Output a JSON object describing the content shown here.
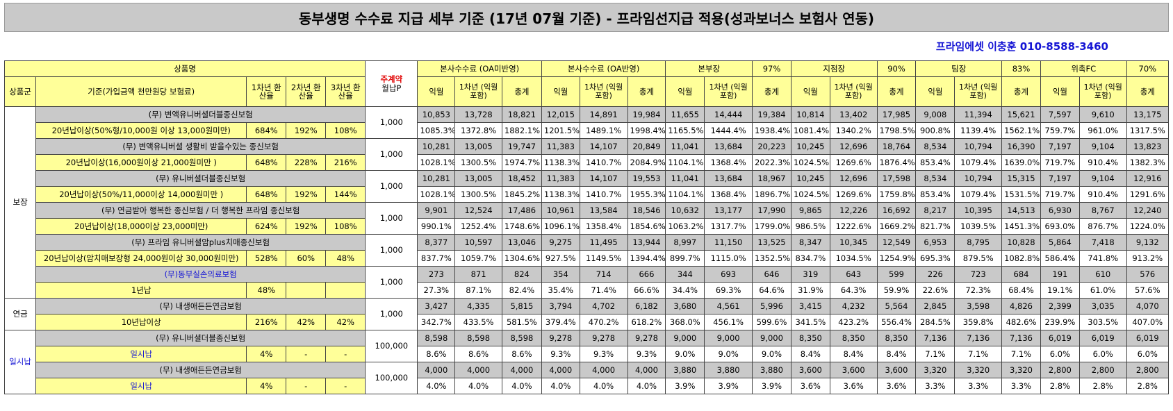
{
  "title": "동부생명 수수료 지급 세부 기준 (17년 07월 기준) - 프라임선지급 적용(성과보너스 보험사 연동)",
  "contact": "프라임에셋 이충훈 010-8588-3460",
  "header": {
    "product_name": "상품명",
    "group": "상품군",
    "basis": "기준(가입금액 천만원당 보험료)",
    "rate1": "1차년 환산율",
    "rate2": "2차년 환산율",
    "rate3": "3차년 환산율",
    "main_contract": "주계약",
    "monthly_premium": "월납P",
    "sections": [
      {
        "label": "본사수수료 (OA미반영)",
        "pct": ""
      },
      {
        "label": "본사수수료 (OA반영)",
        "pct": ""
      },
      {
        "label": "본부장",
        "pct": "97%"
      },
      {
        "label": "지점장",
        "pct": "90%"
      },
      {
        "label": "팀장",
        "pct": "83%"
      },
      {
        "label": "위촉FC",
        "pct": "70%"
      }
    ],
    "sub": [
      "익월",
      "1차년 (익월포함)",
      "총계"
    ]
  },
  "groups": [
    {
      "name": "보장",
      "start": 0,
      "count": 6
    },
    {
      "name": "연금",
      "start": 6,
      "count": 1
    },
    {
      "name": "일시납",
      "start": 7,
      "count": 2
    }
  ],
  "products": [
    {
      "name": "(무) 변액유니버셜더블종신보험",
      "name_blue": false,
      "term": "20년납이상(50%형/10,000원 이상 13,000원미만)",
      "term_blue": false,
      "r1": "684%",
      "r2": "192%",
      "r3": "108%",
      "premium": "1,000",
      "nums": [
        "10,853",
        "13,728",
        "18,821",
        "12,015",
        "14,891",
        "19,984",
        "11,655",
        "14,444",
        "19,384",
        "10,814",
        "13,402",
        "17,985",
        "9,008",
        "11,394",
        "15,621",
        "7,597",
        "9,610",
        "13,175"
      ],
      "pcts": [
        "1085.3%",
        "1372.8%",
        "1882.1%",
        "1201.5%",
        "1489.1%",
        "1998.4%",
        "1165.5%",
        "1444.4%",
        "1938.4%",
        "1081.4%",
        "1340.2%",
        "1798.5%",
        "900.8%",
        "1139.4%",
        "1562.1%",
        "759.7%",
        "961.0%",
        "1317.5%"
      ]
    },
    {
      "name": "(무) 변액유니버셜 생활비 받을수있는 종신보험",
      "name_blue": false,
      "term": "20년납이상(16,000원이상 21,000원미만 )",
      "term_blue": false,
      "r1": "648%",
      "r2": "228%",
      "r3": "216%",
      "premium": "1,000",
      "nums": [
        "10,281",
        "13,005",
        "19,747",
        "11,383",
        "14,107",
        "20,849",
        "11,041",
        "13,684",
        "20,223",
        "10,245",
        "12,696",
        "18,764",
        "8,534",
        "10,794",
        "16,390",
        "7,197",
        "9,104",
        "13,823"
      ],
      "pcts": [
        "1028.1%",
        "1300.5%",
        "1974.7%",
        "1138.3%",
        "1410.7%",
        "2084.9%",
        "1104.1%",
        "1368.4%",
        "2022.3%",
        "1024.5%",
        "1269.6%",
        "1876.4%",
        "853.4%",
        "1079.4%",
        "1639.0%",
        "719.7%",
        "910.4%",
        "1382.3%"
      ]
    },
    {
      "name": "(무) 유니버셜더블종신보험",
      "name_blue": false,
      "term": "20년납이상(50%/11,000이상 14,000원미만 )",
      "term_blue": false,
      "r1": "648%",
      "r2": "192%",
      "r3": "144%",
      "premium": "1,000",
      "nums": [
        "10,281",
        "13,005",
        "18,452",
        "11,383",
        "14,107",
        "19,553",
        "11,041",
        "13,684",
        "18,967",
        "10,245",
        "12,696",
        "17,598",
        "8,534",
        "10,794",
        "15,315",
        "7,197",
        "9,104",
        "12,916"
      ],
      "pcts": [
        "1028.1%",
        "1300.5%",
        "1845.2%",
        "1138.3%",
        "1410.7%",
        "1955.3%",
        "1104.1%",
        "1368.4%",
        "1896.7%",
        "1024.5%",
        "1269.6%",
        "1759.8%",
        "853.4%",
        "1079.4%",
        "1531.5%",
        "719.7%",
        "910.4%",
        "1291.6%"
      ]
    },
    {
      "name": "(무) 연금받아 행복한 종신보험 / 더 행복한 프라임 종신보험",
      "name_blue": false,
      "term": "20년납이상(18,000이상 23,000미만)",
      "term_blue": false,
      "r1": "624%",
      "r2": "192%",
      "r3": "108%",
      "premium": "1,000",
      "nums": [
        "9,901",
        "12,524",
        "17,486",
        "10,961",
        "13,584",
        "18,546",
        "10,632",
        "13,177",
        "17,990",
        "9,865",
        "12,226",
        "16,692",
        "8,217",
        "10,395",
        "14,513",
        "6,930",
        "8,767",
        "12,240"
      ],
      "pcts": [
        "990.1%",
        "1252.4%",
        "1748.6%",
        "1096.1%",
        "1358.4%",
        "1854.6%",
        "1063.2%",
        "1317.7%",
        "1799.0%",
        "986.5%",
        "1222.6%",
        "1669.2%",
        "821.7%",
        "1039.5%",
        "1451.3%",
        "693.0%",
        "876.7%",
        "1224.0%"
      ]
    },
    {
      "name": "(무) 프라임 유니버셜암plus치매종신보험",
      "name_blue": false,
      "term": "20년납이상(암치매보장형 24,000원이상 30,000원미만)",
      "term_blue": false,
      "r1": "528%",
      "r2": "60%",
      "r3": "48%",
      "premium": "1,000",
      "nums": [
        "8,377",
        "10,597",
        "13,046",
        "9,275",
        "11,495",
        "13,944",
        "8,997",
        "11,150",
        "13,525",
        "8,347",
        "10,345",
        "12,549",
        "6,953",
        "8,795",
        "10,828",
        "5,864",
        "7,418",
        "9,132"
      ],
      "pcts": [
        "837.7%",
        "1059.7%",
        "1304.6%",
        "927.5%",
        "1149.5%",
        "1394.4%",
        "899.7%",
        "1115.0%",
        "1352.5%",
        "834.7%",
        "1034.5%",
        "1254.9%",
        "695.3%",
        "879.5%",
        "1082.8%",
        "586.4%",
        "741.8%",
        "913.2%"
      ]
    },
    {
      "name": "(무)동부실손의료보험",
      "name_blue": true,
      "term": "1년납",
      "term_blue": false,
      "r1": "48%",
      "r2": "",
      "r3": "",
      "premium": "1,000",
      "nums": [
        "273",
        "871",
        "824",
        "354",
        "714",
        "666",
        "344",
        "693",
        "646",
        "319",
        "643",
        "599",
        "226",
        "723",
        "684",
        "191",
        "610",
        "576"
      ],
      "pcts": [
        "27.3%",
        "87.1%",
        "82.4%",
        "35.4%",
        "71.4%",
        "66.6%",
        "34.4%",
        "69.3%",
        "64.6%",
        "31.9%",
        "64.3%",
        "59.9%",
        "22.6%",
        "72.3%",
        "68.4%",
        "19.1%",
        "61.0%",
        "57.6%"
      ]
    },
    {
      "name": "(무) 내생애든든연금보험",
      "name_blue": false,
      "term": "10년납이상",
      "term_blue": false,
      "r1": "216%",
      "r2": "42%",
      "r3": "42%",
      "premium": "1,000",
      "nums": [
        "3,427",
        "4,335",
        "5,815",
        "3,794",
        "4,702",
        "6,182",
        "3,680",
        "4,561",
        "5,996",
        "3,415",
        "4,232",
        "5,564",
        "2,845",
        "3,598",
        "4,826",
        "2,399",
        "3,035",
        "4,070"
      ],
      "pcts": [
        "342.7%",
        "433.5%",
        "581.5%",
        "379.4%",
        "470.2%",
        "618.2%",
        "368.0%",
        "456.1%",
        "599.6%",
        "341.5%",
        "423.2%",
        "556.4%",
        "284.5%",
        "359.8%",
        "482.6%",
        "239.9%",
        "303.5%",
        "407.0%"
      ]
    },
    {
      "name": "(무) 유니버셜더블종신보험",
      "name_blue": false,
      "term": "일시납",
      "term_blue": true,
      "r1": "4%",
      "r2": "-",
      "r3": "-",
      "premium": "100,000",
      "nums": [
        "8,598",
        "8,598",
        "8,598",
        "9,278",
        "9,278",
        "9,278",
        "9,000",
        "9,000",
        "9,000",
        "8,350",
        "8,350",
        "8,350",
        "7,136",
        "7,136",
        "7,136",
        "6,019",
        "6,019",
        "6,019"
      ],
      "pcts": [
        "8.6%",
        "8.6%",
        "8.6%",
        "9.3%",
        "9.3%",
        "9.3%",
        "9.0%",
        "9.0%",
        "9.0%",
        "8.4%",
        "8.4%",
        "8.4%",
        "7.1%",
        "7.1%",
        "7.1%",
        "6.0%",
        "6.0%",
        "6.0%"
      ]
    },
    {
      "name": "(무) 내생애든든연금보험",
      "name_blue": false,
      "term": "일시납",
      "term_blue": true,
      "r1": "4%",
      "r2": "-",
      "r3": "-",
      "premium": "100,000",
      "nums": [
        "4,000",
        "4,000",
        "4,000",
        "4,000",
        "4,000",
        "4,000",
        "3,880",
        "3,880",
        "3,880",
        "3,600",
        "3,600",
        "3,600",
        "3,320",
        "3,320",
        "3,320",
        "2,800",
        "2,800",
        "2,800"
      ],
      "pcts": [
        "4.0%",
        "4.0%",
        "4.0%",
        "4.0%",
        "4.0%",
        "4.0%",
        "3.9%",
        "3.9%",
        "3.9%",
        "3.6%",
        "3.6%",
        "3.6%",
        "3.3%",
        "3.3%",
        "3.3%",
        "2.8%",
        "2.8%",
        "2.8%"
      ]
    }
  ]
}
